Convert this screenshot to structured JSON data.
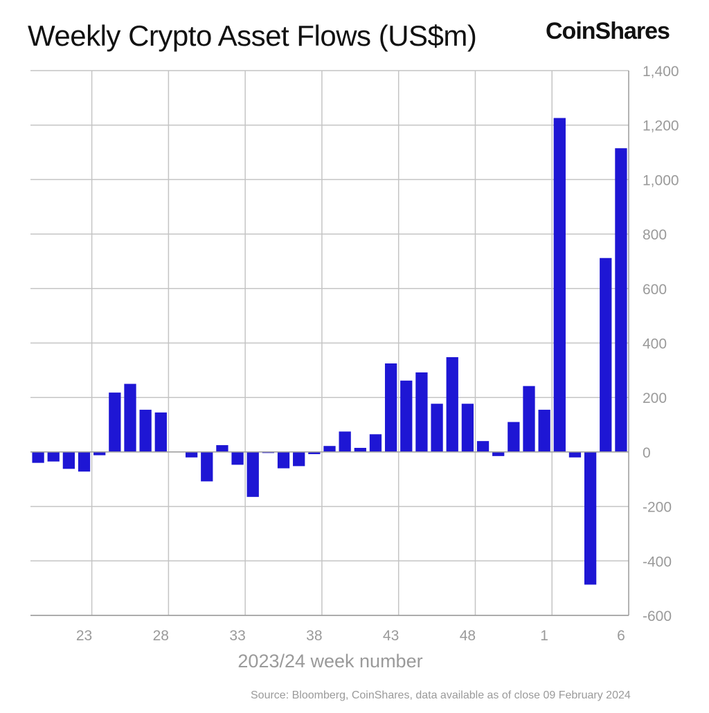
{
  "header": {
    "title": "Weekly Crypto Asset Flows (US$m)",
    "brand": "CoinShares"
  },
  "footer": {
    "source": "Source: Bloomberg, CoinShares, data available as of close 09 February 2024"
  },
  "colors": {
    "bar": "#1e16d4",
    "grid": "#c4c4c4",
    "tick_text": "#9a9a9a",
    "axis": "#9a9a9a"
  },
  "chart_data": {
    "type": "bar",
    "title": "Weekly Crypto Asset Flows (US$m)",
    "xlabel": "2023/24 week number",
    "ylabel": "",
    "ylim": [
      -600,
      1400
    ],
    "yticks": [
      1400,
      1200,
      1000,
      800,
      600,
      400,
      200,
      0,
      -200,
      -400,
      -600
    ],
    "ytick_labels": [
      "1,400",
      "1,200",
      "1,000",
      "800",
      "600",
      "400",
      "200",
      "0",
      "-200",
      "-400",
      "-600"
    ],
    "y_axis_position": "right",
    "grid": true,
    "categories": [
      "20",
      "21",
      "22",
      "23",
      "24",
      "25",
      "26",
      "27",
      "28",
      "29",
      "30",
      "31",
      "32",
      "33",
      "34",
      "35",
      "36",
      "37",
      "38",
      "39",
      "40",
      "41",
      "42",
      "43",
      "44",
      "45",
      "46",
      "47",
      "48",
      "49",
      "50",
      "51",
      "52",
      "1",
      "2",
      "3",
      "4",
      "5",
      "6"
    ],
    "xtick_labels": [
      "23",
      "28",
      "33",
      "38",
      "43",
      "48",
      "1",
      "6"
    ],
    "values": [
      -40,
      -35,
      -62,
      -72,
      -12,
      218,
      250,
      155,
      145,
      0,
      -20,
      -108,
      25,
      -47,
      -165,
      -3,
      -60,
      -52,
      -8,
      22,
      75,
      15,
      65,
      325,
      262,
      292,
      177,
      348,
      177,
      40,
      -15,
      110,
      242,
      155,
      1226,
      -20,
      -487,
      712,
      1115
    ]
  }
}
